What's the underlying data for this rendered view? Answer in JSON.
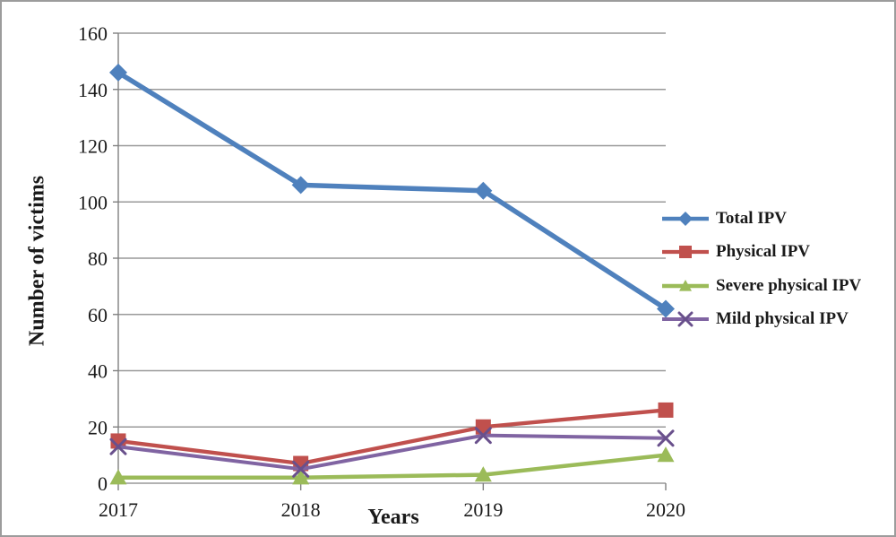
{
  "figure": {
    "background": "#ffffff",
    "border_color": "#9c9c9c",
    "gridline_color": "#999999",
    "axis_color": "#808080",
    "text_color": "#1a1a1a"
  },
  "chart_data": {
    "type": "line",
    "title": "",
    "xlabel": "Years",
    "ylabel": "Number of victims",
    "categories": [
      "2017",
      "2018",
      "2019",
      "2020"
    ],
    "ylim": [
      0,
      160
    ],
    "y_ticks": [
      0,
      20,
      40,
      60,
      80,
      100,
      120,
      140,
      160
    ],
    "grid": true,
    "legend_position": "right",
    "series": [
      {
        "name": "Total IPV",
        "color": "#4F81BD",
        "marker": "diamond",
        "values": [
          146,
          106,
          104,
          62
        ]
      },
      {
        "name": "Physical IPV",
        "color": "#C0504D",
        "marker": "square",
        "values": [
          15,
          7,
          20,
          26
        ]
      },
      {
        "name": "Severe physical IPV",
        "color": "#9BBB59",
        "marker": "triangle",
        "values": [
          2,
          2,
          3,
          10
        ]
      },
      {
        "name": "Mild physical IPV",
        "color": "#8064A2",
        "marker": "x",
        "marker_color": "#69508C",
        "values": [
          13,
          5,
          17,
          16
        ]
      }
    ]
  }
}
